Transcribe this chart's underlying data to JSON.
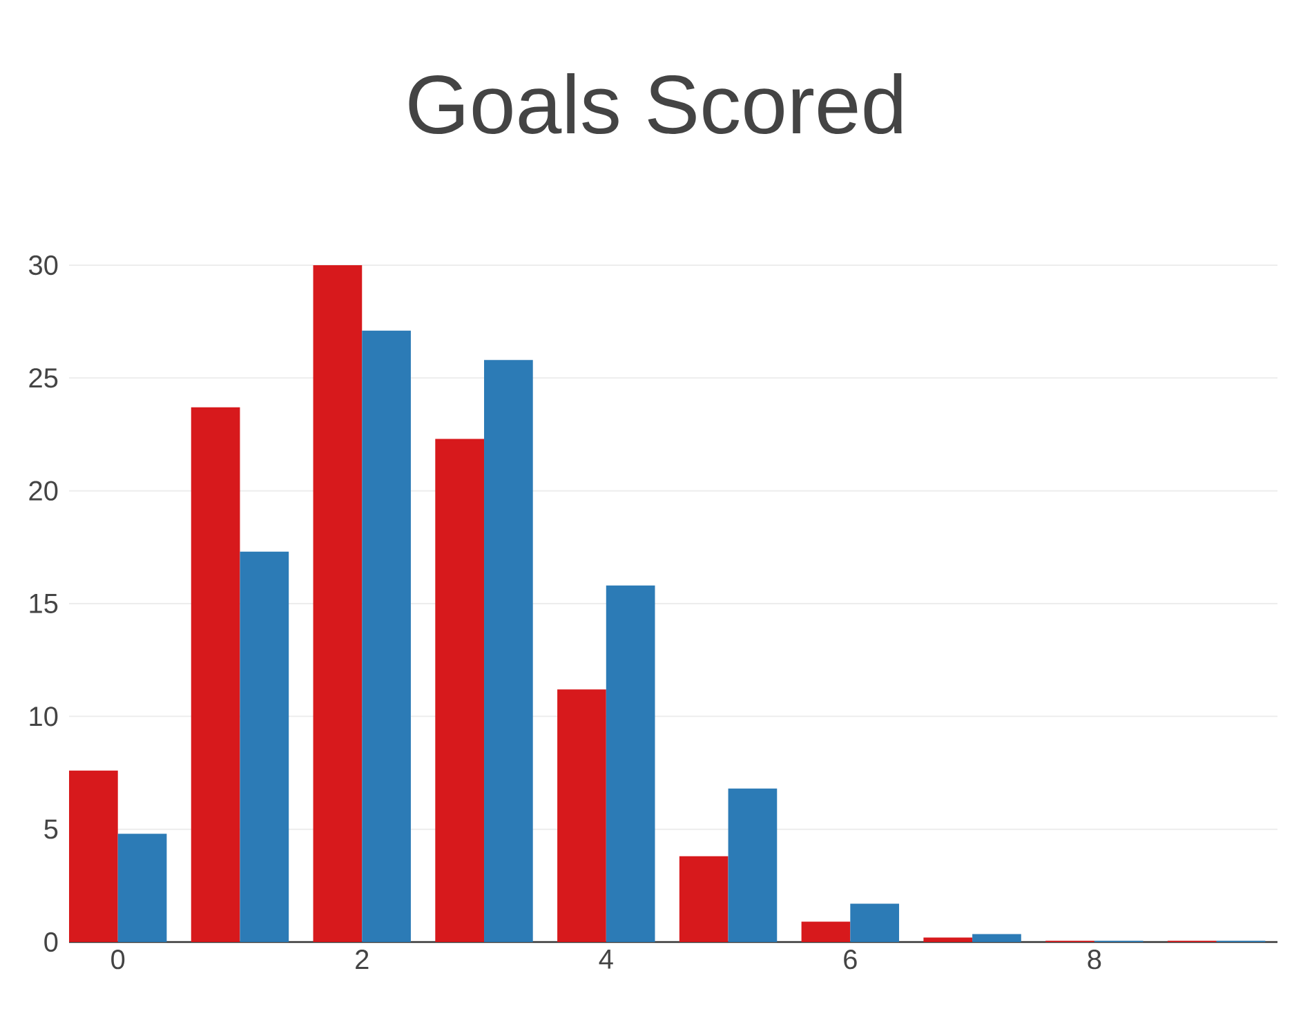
{
  "chart_data": {
    "type": "bar",
    "title": "Goals Scored",
    "x": [
      0,
      1,
      2,
      3,
      4,
      5,
      6,
      7,
      8,
      9
    ],
    "series": [
      {
        "color": "#d7191c",
        "values": [
          7.6,
          23.7,
          30,
          22.3,
          11.2,
          3.8,
          0.9,
          0.2,
          0.05,
          0.05
        ]
      },
      {
        "color": "#2c7bb6",
        "values": [
          4.8,
          17.3,
          27.1,
          25.8,
          15.8,
          6.8,
          1.7,
          0.35,
          0.05,
          0.05
        ]
      }
    ],
    "xlim": [
      -0.4,
      9.5
    ],
    "xticks": [
      0,
      2,
      4,
      6,
      8
    ],
    "ylim": [
      0,
      30
    ],
    "yticks": [
      0,
      5,
      10,
      15,
      20,
      25,
      30
    ],
    "grid": "y"
  }
}
